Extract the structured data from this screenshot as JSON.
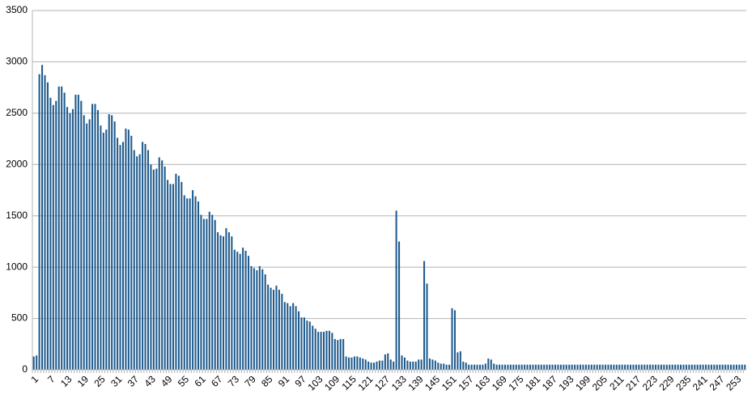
{
  "chart_data": {
    "type": "bar",
    "color": "#1f5b8e",
    "grid": true,
    "ylim": [
      0,
      3500
    ],
    "yticks": [
      0,
      500,
      1000,
      1500,
      2000,
      2500,
      3000,
      3500
    ],
    "categories": [
      "1",
      null,
      null,
      null,
      null,
      null,
      "7",
      null,
      null,
      null,
      null,
      null,
      "13",
      null,
      null,
      null,
      null,
      null,
      "19",
      null,
      null,
      null,
      null,
      null,
      "25",
      null,
      null,
      null,
      null,
      null,
      "31",
      null,
      null,
      null,
      null,
      null,
      "37",
      null,
      null,
      null,
      null,
      null,
      "43",
      null,
      null,
      null,
      null,
      null,
      "49",
      null,
      null,
      null,
      null,
      null,
      "55",
      null,
      null,
      null,
      null,
      null,
      "61",
      null,
      null,
      null,
      null,
      null,
      "67",
      null,
      null,
      null,
      null,
      null,
      "73",
      null,
      null,
      null,
      null,
      null,
      "79",
      null,
      null,
      null,
      null,
      null,
      "85",
      null,
      null,
      null,
      null,
      null,
      "91",
      null,
      null,
      null,
      null,
      null,
      "97",
      null,
      null,
      null,
      null,
      null,
      "103",
      null,
      null,
      null,
      null,
      null,
      "109",
      null,
      null,
      null,
      null,
      null,
      "115",
      null,
      null,
      null,
      null,
      null,
      "121",
      null,
      null,
      null,
      null,
      null,
      "127",
      null,
      null,
      null,
      null,
      null,
      "133",
      null,
      null,
      null,
      null,
      null,
      "139",
      null,
      null,
      null,
      null,
      null,
      "145",
      null,
      null,
      null,
      null,
      null,
      "151",
      null,
      null,
      null,
      null,
      null,
      "157",
      null,
      null,
      null,
      null,
      null,
      "163",
      null,
      null,
      null,
      null,
      null,
      "169",
      null,
      null,
      null,
      null,
      null,
      "175",
      null,
      null,
      null,
      null,
      null,
      "181",
      null,
      null,
      null,
      null,
      null,
      "187",
      null,
      null,
      null,
      null,
      null,
      "193",
      null,
      null,
      null,
      null,
      null,
      "199",
      null,
      null,
      null,
      null,
      null,
      "205",
      null,
      null,
      null,
      null,
      null,
      "211",
      null,
      null,
      null,
      null,
      null,
      "217",
      null,
      null,
      null,
      null,
      null,
      "223",
      null,
      null,
      null,
      null,
      null,
      "229",
      null,
      null,
      null,
      null,
      null,
      "235",
      null,
      null,
      null,
      null,
      null,
      "241",
      null,
      null,
      null,
      null,
      null,
      "247",
      null,
      null,
      null,
      null,
      null,
      "253",
      null,
      null,
      null
    ],
    "values": [
      130,
      140,
      2880,
      2970,
      2870,
      2800,
      2650,
      2580,
      2620,
      2760,
      2760,
      2700,
      2560,
      2500,
      2540,
      2680,
      2680,
      2620,
      2480,
      2400,
      2440,
      2590,
      2590,
      2530,
      2380,
      2310,
      2340,
      2490,
      2480,
      2420,
      2260,
      2190,
      2220,
      2350,
      2340,
      2280,
      2140,
      2080,
      2100,
      2220,
      2200,
      2140,
      2000,
      1950,
      1960,
      2070,
      2040,
      1980,
      1850,
      1810,
      1810,
      1910,
      1890,
      1830,
      1700,
      1670,
      1670,
      1750,
      1690,
      1640,
      1510,
      1470,
      1470,
      1540,
      1510,
      1460,
      1340,
      1310,
      1300,
      1380,
      1340,
      1300,
      1170,
      1150,
      1130,
      1190,
      1160,
      1110,
      1010,
      990,
      970,
      1010,
      980,
      930,
      830,
      800,
      780,
      820,
      780,
      740,
      660,
      650,
      620,
      650,
      620,
      570,
      510,
      510,
      480,
      470,
      430,
      400,
      370,
      370,
      370,
      380,
      380,
      360,
      300,
      290,
      300,
      300,
      130,
      120,
      120,
      130,
      130,
      120,
      110,
      100,
      80,
      70,
      70,
      80,
      90,
      90,
      150,
      160,
      100,
      80,
      1550,
      1250,
      140,
      120,
      90,
      80,
      80,
      80,
      100,
      100,
      1060,
      840,
      110,
      100,
      90,
      70,
      60,
      60,
      50,
      50,
      600,
      580,
      170,
      180,
      80,
      70,
      50,
      50,
      50,
      50,
      50,
      50,
      60,
      110,
      100,
      60,
      50,
      50,
      50,
      50,
      50,
      50,
      50,
      50,
      50,
      50,
      50,
      50,
      50,
      50,
      50,
      50,
      50,
      50,
      50,
      50,
      50,
      50,
      50,
      50,
      50,
      50,
      50,
      50,
      50,
      50,
      50,
      50,
      50,
      50,
      50,
      50,
      50,
      50,
      50,
      50,
      50,
      50,
      50,
      50,
      50,
      50,
      50,
      50,
      50,
      50,
      50,
      50,
      50,
      50,
      50,
      50,
      50,
      50,
      50,
      50,
      50,
      50,
      50,
      50,
      50,
      50,
      50,
      50,
      50,
      50,
      50,
      50,
      50,
      50,
      50,
      50,
      50,
      50,
      50,
      50,
      50,
      50,
      50,
      50,
      50,
      50,
      50,
      50,
      50,
      50
    ]
  }
}
